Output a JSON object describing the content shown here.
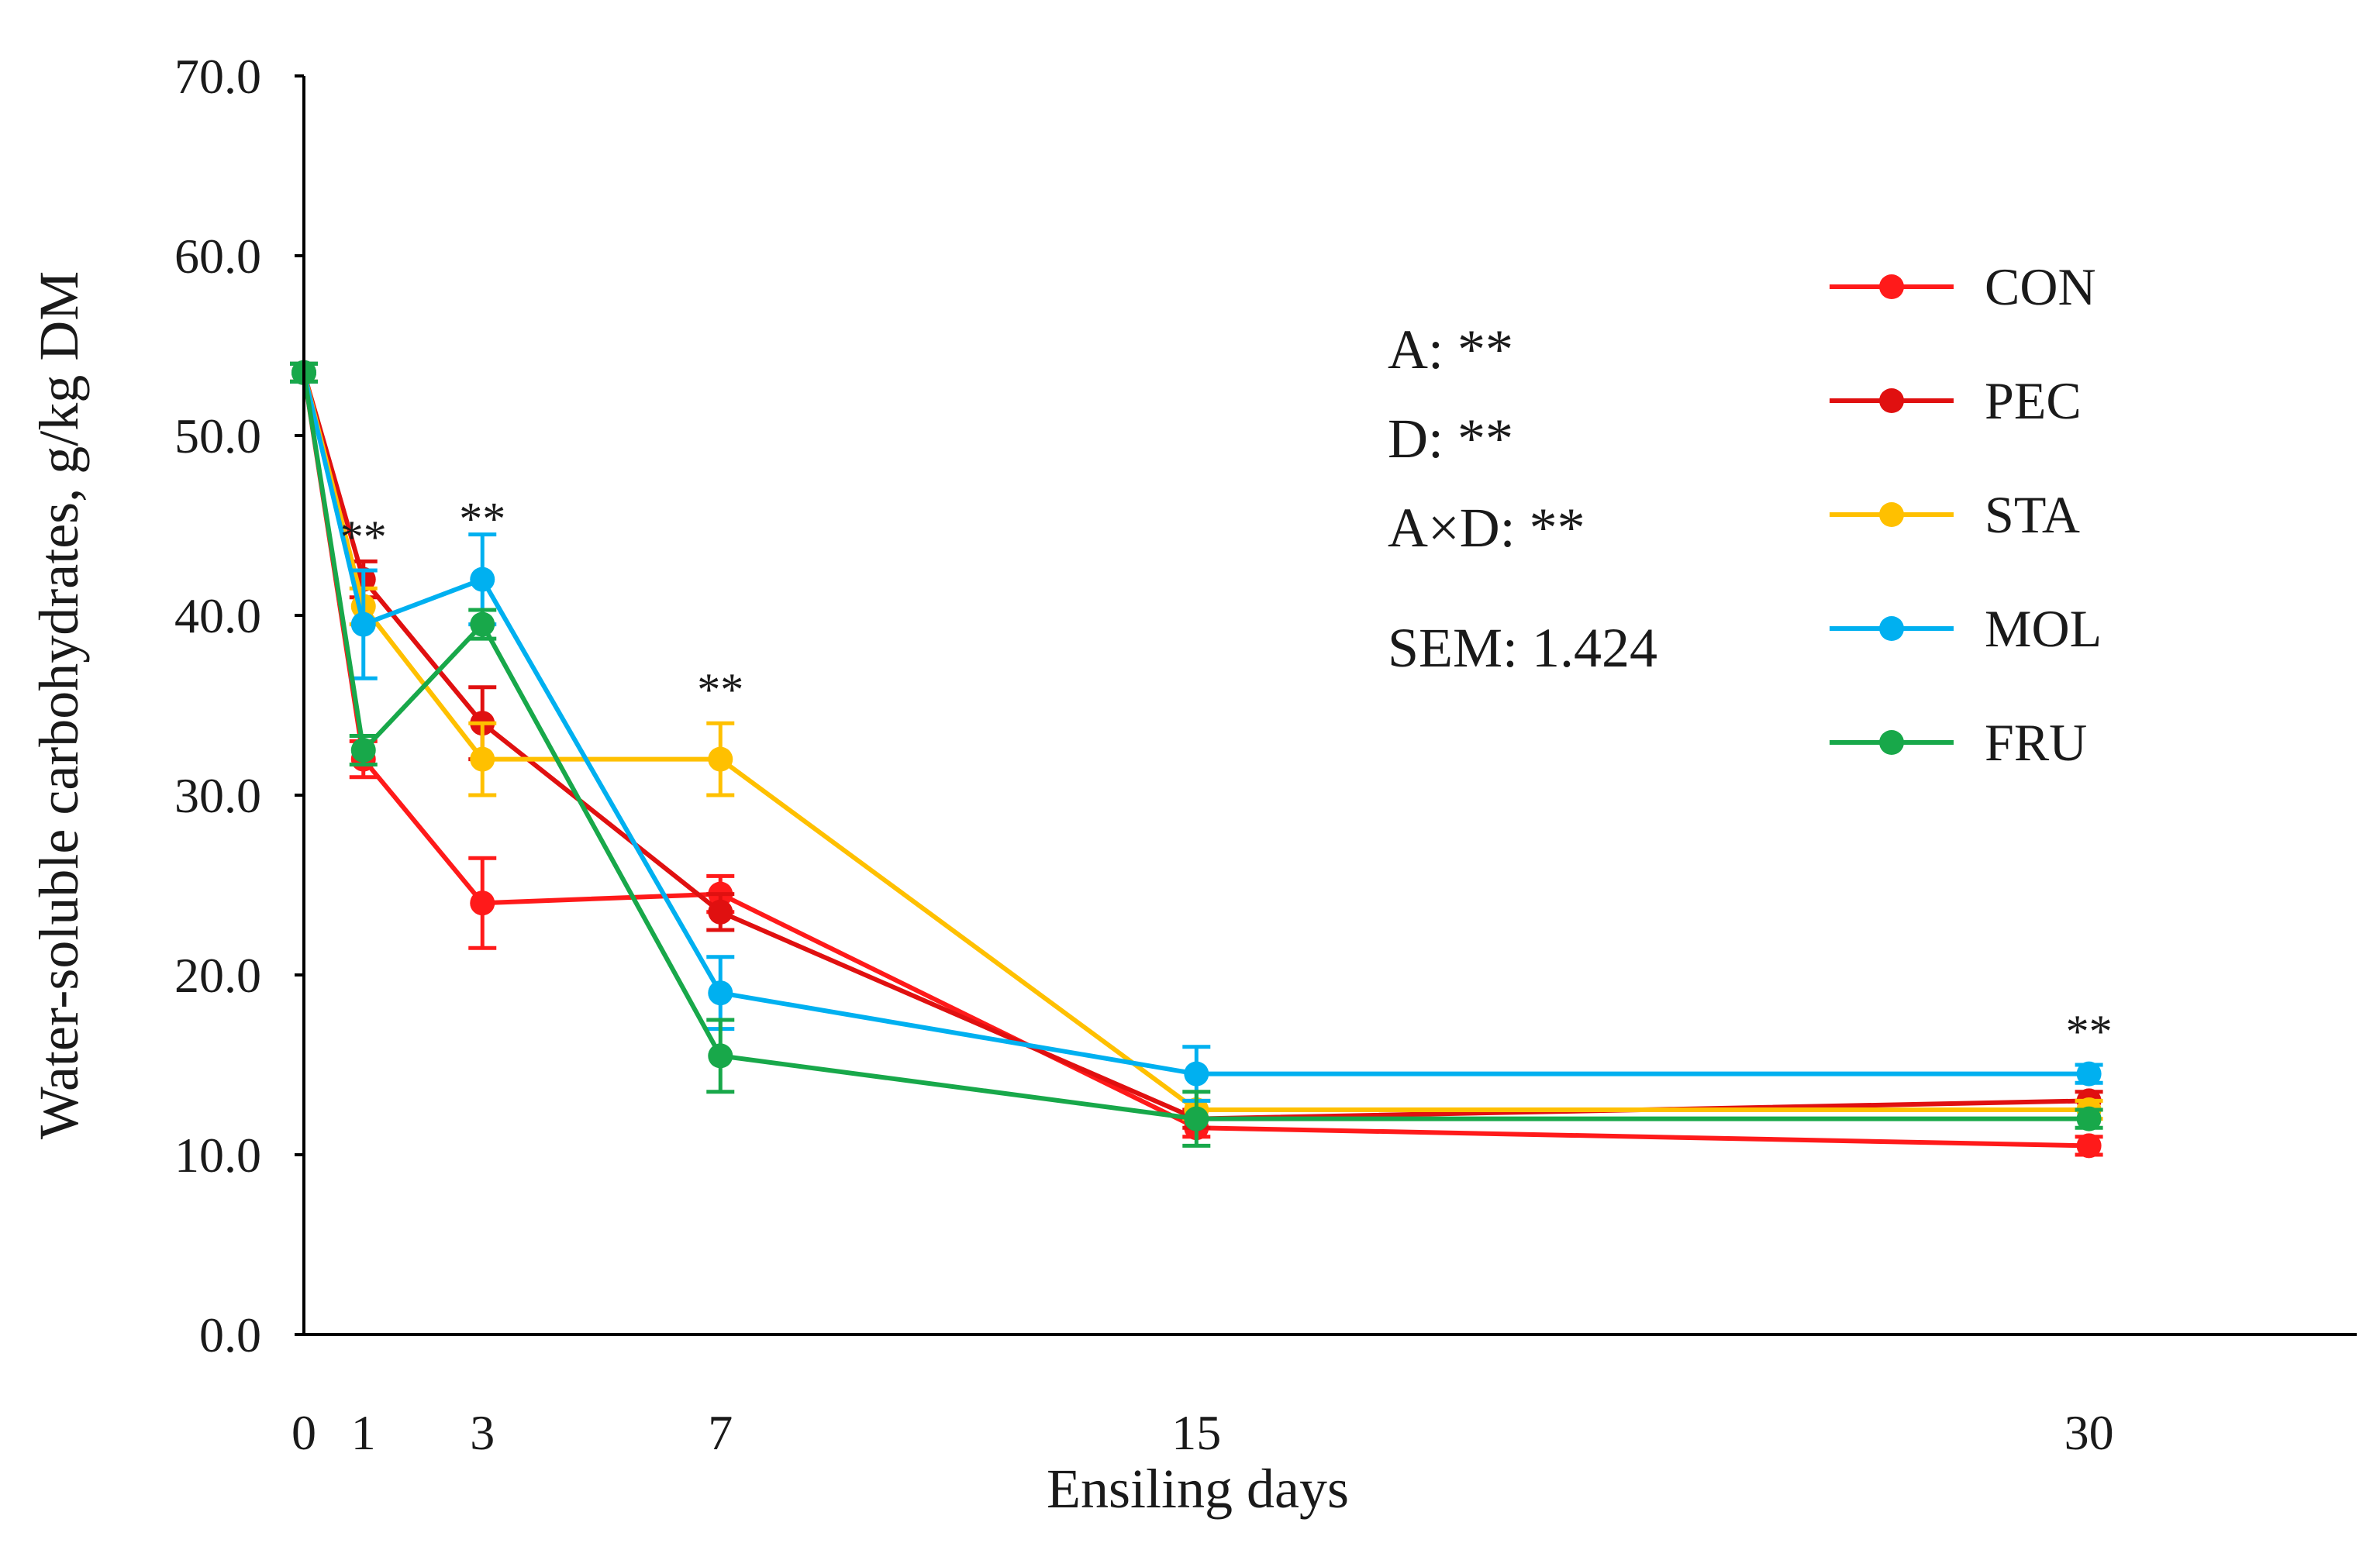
{
  "chart_data": {
    "type": "line",
    "xlabel": "Ensiling days",
    "ylabel": "Water-soluble carbohydrates,  g/kg DM",
    "x": [
      0,
      1,
      3,
      7,
      15,
      30
    ],
    "x_tick_labels": [
      "0",
      "1",
      "3",
      "7",
      "15",
      "30"
    ],
    "xlim": [
      0,
      34.5
    ],
    "ylim": [
      0,
      70
    ],
    "y_tick_labels": [
      "0.0",
      "10.0",
      "20.0",
      "30.0",
      "40.0",
      "50.0",
      "60.0",
      "70.0"
    ],
    "grid": false,
    "legend_position": "right",
    "series": [
      {
        "name": "CON",
        "color": "#FF1A1A",
        "values": [
          53.5,
          32.0,
          24.0,
          24.5,
          11.5,
          10.5
        ],
        "errors": [
          0.5,
          1.0,
          2.5,
          1.0,
          0.5,
          0.5
        ]
      },
      {
        "name": "PEC",
        "color": "#E01010",
        "values": [
          53.5,
          42.0,
          34.0,
          23.5,
          12.0,
          13.0
        ],
        "errors": [
          0.5,
          1.0,
          2.0,
          1.0,
          0.5,
          0.5
        ]
      },
      {
        "name": "STA",
        "color": "#FFC000",
        "values": [
          53.5,
          40.5,
          32.0,
          32.0,
          12.5,
          12.5
        ],
        "errors": [
          0.5,
          1.0,
          2.0,
          2.0,
          0.5,
          0.5
        ]
      },
      {
        "name": "MOL",
        "color": "#00B0F0",
        "values": [
          53.5,
          39.5,
          42.0,
          19.0,
          14.5,
          14.5
        ],
        "errors": [
          0.5,
          3.0,
          2.5,
          2.0,
          1.5,
          0.5
        ]
      },
      {
        "name": "FRU",
        "color": "#18A84A",
        "values": [
          53.5,
          32.5,
          39.5,
          15.5,
          12.0,
          12.0
        ],
        "errors": [
          0.5,
          0.8,
          0.8,
          2.0,
          1.5,
          0.5
        ]
      }
    ],
    "significance": [
      {
        "x": 1,
        "y": 43.5,
        "label": "**"
      },
      {
        "x": 3,
        "y": 44.5,
        "label": "**"
      },
      {
        "x": 7,
        "y": 35.0,
        "label": "**"
      },
      {
        "x": 30,
        "y": 16.0,
        "label": "**"
      }
    ],
    "stats": [
      "A:  **",
      "D:  **",
      "A×D:  **",
      "SEM:  1.424"
    ]
  }
}
